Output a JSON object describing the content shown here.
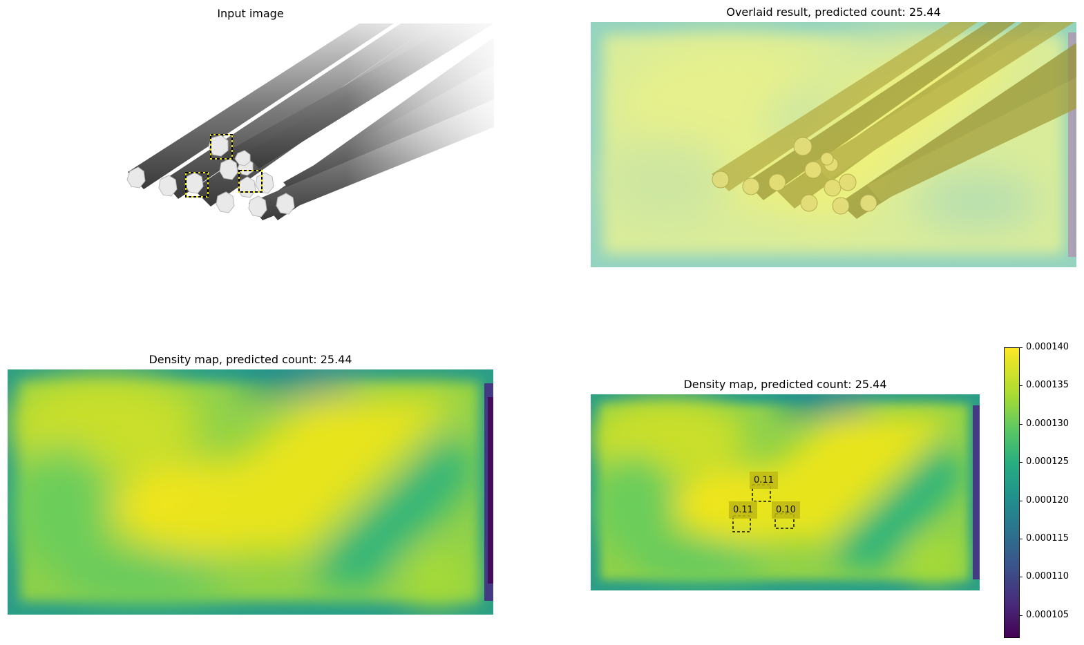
{
  "panels": {
    "input": {
      "title": "Input image"
    },
    "overlay": {
      "title": "Overlaid result, predicted count: 25.44"
    },
    "density": {
      "title": "Density map, predicted count: 25.44"
    },
    "density_boxes": {
      "title": "Density map, predicted count: 25.44"
    }
  },
  "chart_data": [
    {
      "type": "heatmap",
      "title": "Density map, predicted count: 25.44",
      "colormap": "viridis",
      "predicted_count": 25.44
    },
    {
      "type": "heatmap",
      "title": "Density map, predicted count: 25.44",
      "colormap": "viridis",
      "predicted_count": 25.44,
      "box_values": [
        "0.11",
        "0.11",
        "0.10"
      ],
      "colorbar": {
        "range": [
          0.000102,
          0.00014
        ],
        "ticks": [
          "0.000105",
          "0.000110",
          "0.000115",
          "0.000120",
          "0.000125",
          "0.000130",
          "0.000135",
          "0.000140"
        ]
      }
    }
  ],
  "colors": {
    "box_yellow": "#f2e600",
    "viridis_high": "#f6e61f",
    "viridis_mid": "#21918c",
    "viridis_low": "#440154"
  }
}
